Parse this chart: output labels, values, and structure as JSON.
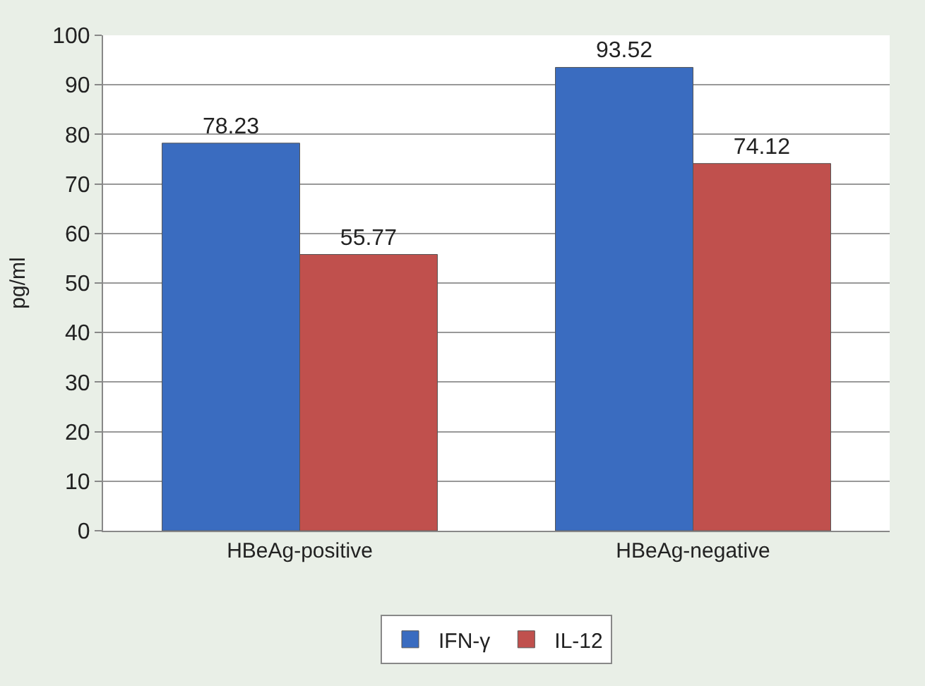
{
  "chart_data": {
    "type": "bar",
    "ylabel": "pg/ml",
    "categories": [
      "HBeAg-positive",
      "HBeAg-negative"
    ],
    "series": [
      {
        "name": "IFN-γ",
        "color": "#3a6cc0",
        "values": [
          78.23,
          93.52
        ]
      },
      {
        "name": "IL-12",
        "color": "#c0504d",
        "values": [
          55.77,
          74.12
        ]
      }
    ],
    "ylim": [
      0,
      100
    ],
    "yticks": [
      0,
      10,
      20,
      30,
      40,
      50,
      60,
      70,
      80,
      90,
      100
    ],
    "grid": "y",
    "legend": "bottom",
    "data_labels": true
  }
}
